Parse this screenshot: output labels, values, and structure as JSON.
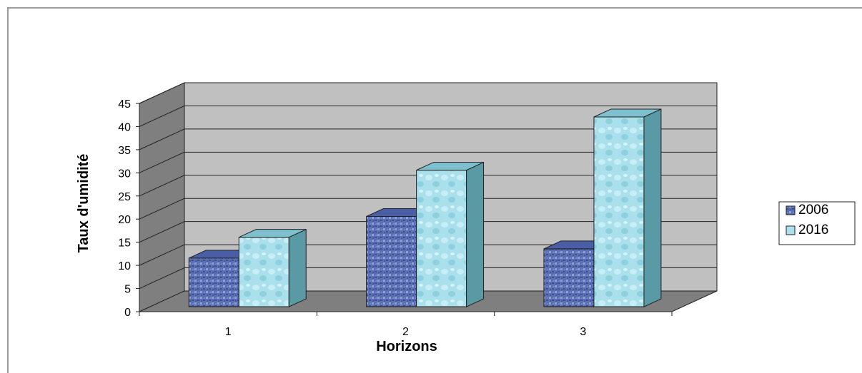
{
  "chart_data": {
    "type": "bar",
    "categories": [
      "1",
      "2",
      "3"
    ],
    "series": [
      {
        "name": "2006",
        "values": [
          10.5,
          19.5,
          12.5
        ],
        "color": "#5b6fb3"
      },
      {
        "name": "2016",
        "values": [
          15,
          29.5,
          41
        ],
        "color": "#a9e0ec"
      }
    ],
    "xlabel": "Horizons",
    "ylabel": "Taux d'umidité",
    "ylim": [
      0,
      45
    ],
    "yticks": [
      0,
      5,
      10,
      15,
      20,
      25,
      30,
      35,
      40,
      45
    ],
    "grid": true,
    "legend": "right",
    "style": "3d-clustered-column"
  }
}
